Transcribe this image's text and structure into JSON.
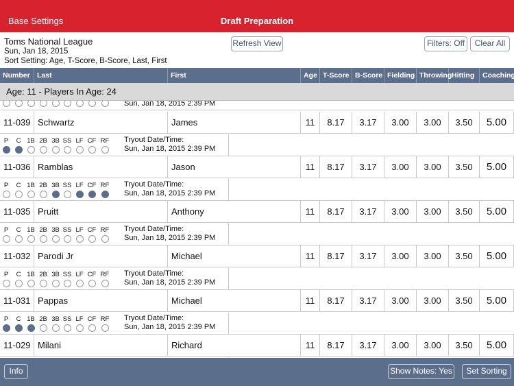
{
  "nav": {
    "back_label": "Base Settings",
    "title": "Draft Preparation"
  },
  "info": {
    "league": "Toms National League",
    "date": "Sun, Jan 18, 2015",
    "sort": "Sort Setting: Age, T-Score, B-Score, Last, First"
  },
  "buttons": {
    "refresh": "Refresh View",
    "filters": "Filters: Off",
    "clear": "Clear All",
    "info": "Info",
    "notes": "Show Notes: Yes",
    "sorting": "Set Sorting"
  },
  "columns": [
    "Number",
    "Last",
    "First",
    "Age",
    "T-Score",
    "B-Score",
    "Fielding",
    "Throwing",
    "Hitting",
    "Coaching"
  ],
  "group_label": "Age: 11 - Players In Age: 24",
  "positions": [
    "P",
    "C",
    "1B",
    "2B",
    "3B",
    "SS",
    "LF",
    "CF",
    "RF"
  ],
  "tryout_label": "Tryout Date/Time:",
  "tryout_value": "Sun, Jan 18, 2015 2:39 PM",
  "players": [
    {
      "number": "11-039",
      "last": "Schwartz",
      "first": "James",
      "age": "11",
      "t": "8.17",
      "b": "3.17",
      "f": "3.00",
      "th": "3.00",
      "h": "3.50",
      "c": "5.00",
      "pos": [
        1,
        1,
        0,
        0,
        0,
        0,
        0,
        0,
        0
      ]
    },
    {
      "number": "11-036",
      "last": "Ramblas",
      "first": "Jason",
      "age": "11",
      "t": "8.17",
      "b": "3.17",
      "f": "3.00",
      "th": "3.00",
      "h": "3.50",
      "c": "5.00",
      "pos": [
        0,
        0,
        0,
        0,
        1,
        0,
        1,
        1,
        1
      ]
    },
    {
      "number": "11-035",
      "last": "Pruitt",
      "first": "Anthony",
      "age": "11",
      "t": "8.17",
      "b": "3.17",
      "f": "3.00",
      "th": "3.00",
      "h": "3.50",
      "c": "5.00",
      "pos": [
        0,
        0,
        0,
        0,
        0,
        0,
        0,
        0,
        0
      ]
    },
    {
      "number": "11-032",
      "last": "Parodi Jr",
      "first": "Michael",
      "age": "11",
      "t": "8.17",
      "b": "3.17",
      "f": "3.00",
      "th": "3.00",
      "h": "3.50",
      "c": "5.00",
      "pos": [
        0,
        0,
        0,
        0,
        0,
        0,
        0,
        0,
        0
      ]
    },
    {
      "number": "11-031",
      "last": "Pappas",
      "first": "Michael",
      "age": "11",
      "t": "8.17",
      "b": "3.17",
      "f": "3.00",
      "th": "3.00",
      "h": "3.50",
      "c": "5.00",
      "pos": [
        1,
        1,
        1,
        0,
        0,
        0,
        0,
        0,
        0
      ]
    },
    {
      "number": "11-029",
      "last": "Milani",
      "first": "Richard",
      "age": "11",
      "t": "8.17",
      "b": "3.17",
      "f": "3.00",
      "th": "3.00",
      "h": "3.50",
      "c": "5.00",
      "pos": [
        0,
        0,
        0,
        0,
        0,
        0,
        0,
        0,
        0
      ]
    }
  ]
}
